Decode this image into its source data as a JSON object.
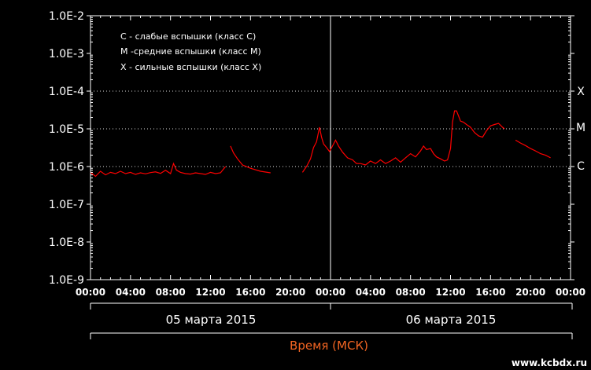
{
  "chart_data": {
    "type": "line",
    "y_scale": "log",
    "ylim": [
      "1.0E-9",
      "1.0E-2"
    ],
    "y_tick_labels": [
      "1.0E-2",
      "1.0E-3",
      "1.0E-4",
      "1.0E-5",
      "1.0E-6",
      "1.0E-7",
      "1.0E-8",
      "1.0E-9"
    ],
    "x_tick_labels": [
      "00:00",
      "04:00",
      "08:00",
      "12:00",
      "16:00",
      "20:00",
      "00:00",
      "04:00",
      "08:00",
      "12:00",
      "16:00",
      "20:00",
      "00:00"
    ],
    "xlim_hours": [
      0,
      48
    ],
    "legend": [
      "C - слабые вспышки (класс C)",
      "M -средние вспышки (класс M)",
      "X - сильные вспышки (класс X)"
    ],
    "flare_classes": [
      {
        "label": "X",
        "value": 0.0001
      },
      {
        "label": "M",
        "value": 1e-05
      },
      {
        "label": "C",
        "value": 1e-06
      }
    ],
    "dates": [
      "05 марта 2015",
      "06 марта 2015"
    ],
    "xlabel": "Время (МСК)",
    "series_color": "#ff0000",
    "series": [
      {
        "segments": [
          [
            [
              0,
              7e-07
            ],
            [
              0.5,
              5.5e-07
            ],
            [
              1.0,
              7.5e-07
            ],
            [
              1.5,
              6e-07
            ],
            [
              2.0,
              7e-07
            ],
            [
              2.5,
              6.5e-07
            ],
            [
              3.0,
              7.5e-07
            ],
            [
              3.5,
              6.5e-07
            ],
            [
              4.0,
              7e-07
            ],
            [
              4.5,
              6.2e-07
            ],
            [
              5.0,
              6.8e-07
            ],
            [
              5.5,
              6.4e-07
            ],
            [
              6.0,
              6.9e-07
            ],
            [
              6.5,
              7.2e-07
            ],
            [
              7.0,
              6.6e-07
            ],
            [
              7.5,
              8e-07
            ],
            [
              8.0,
              6.5e-07
            ],
            [
              8.3,
              1.2e-06
            ],
            [
              8.6,
              8e-07
            ],
            [
              9.0,
              7e-07
            ],
            [
              9.5,
              6.5e-07
            ],
            [
              10.0,
              6.3e-07
            ],
            [
              10.5,
              6.8e-07
            ],
            [
              11.0,
              6.5e-07
            ],
            [
              11.5,
              6.2e-07
            ],
            [
              12.0,
              7e-07
            ],
            [
              12.5,
              6.5e-07
            ],
            [
              13.0,
              6.8e-07
            ],
            [
              13.5,
              1e-06
            ]
          ],
          [
            [
              14.0,
              3.5e-06
            ],
            [
              14.3,
              2.3e-06
            ],
            [
              14.7,
              1.6e-06
            ],
            [
              15.2,
              1.1e-06
            ],
            [
              16.0,
              9e-07
            ],
            [
              17.0,
              7.5e-07
            ],
            [
              18.0,
              6.8e-07
            ]
          ],
          [
            [
              21.2,
              7e-07
            ],
            [
              21.6,
              1e-06
            ],
            [
              22.0,
              1.6e-06
            ],
            [
              22.3,
              3.2e-06
            ],
            [
              22.6,
              4.5e-06
            ],
            [
              22.9,
              1.1e-05
            ],
            [
              23.1,
              6e-06
            ],
            [
              23.3,
              4e-06
            ],
            [
              23.6,
              3.2e-06
            ],
            [
              23.9,
              2.5e-06
            ],
            [
              24.2,
              3.5e-06
            ],
            [
              24.5,
              5e-06
            ],
            [
              24.8,
              3.5e-06
            ],
            [
              25.2,
              2.4e-06
            ],
            [
              25.7,
              1.7e-06
            ],
            [
              26.2,
              1.5e-06
            ],
            [
              26.6,
              1.2e-06
            ],
            [
              27.0,
              1.2e-06
            ],
            [
              27.5,
              1.1e-06
            ],
            [
              28.0,
              1.4e-06
            ],
            [
              28.5,
              1.2e-06
            ],
            [
              29.0,
              1.5e-06
            ],
            [
              29.5,
              1.2e-06
            ],
            [
              30.0,
              1.4e-06
            ],
            [
              30.5,
              1.7e-06
            ],
            [
              31.0,
              1.3e-06
            ],
            [
              31.5,
              1.7e-06
            ],
            [
              32.0,
              2.2e-06
            ],
            [
              32.5,
              1.8e-06
            ],
            [
              33.0,
              2.6e-06
            ],
            [
              33.3,
              3.5e-06
            ],
            [
              33.6,
              2.8e-06
            ],
            [
              34.0,
              3e-06
            ],
            [
              34.3,
              2.2e-06
            ],
            [
              34.6,
              1.8e-06
            ],
            [
              35.0,
              1.6e-06
            ],
            [
              35.4,
              1.4e-06
            ],
            [
              35.7,
              1.5e-06
            ],
            [
              36.0,
              3e-06
            ],
            [
              36.2,
              1.5e-05
            ],
            [
              36.4,
              3e-05
            ],
            [
              36.6,
              3e-05
            ],
            [
              36.8,
              2.2e-05
            ],
            [
              37.0,
              1.6e-05
            ],
            [
              37.3,
              1.5e-05
            ],
            [
              37.6,
              1.3e-05
            ],
            [
              38.0,
              1.1e-05
            ],
            [
              38.4,
              8e-06
            ],
            [
              38.8,
              6.5e-06
            ],
            [
              39.2,
              6e-06
            ],
            [
              39.6,
              9e-06
            ],
            [
              40.0,
              1.2e-05
            ],
            [
              40.4,
              1.3e-05
            ],
            [
              40.8,
              1.4e-05
            ],
            [
              41.2,
              1.1e-05
            ],
            [
              41.4,
              1e-05
            ]
          ],
          [
            [
              42.5,
              5e-06
            ],
            [
              43.0,
              4.2e-06
            ],
            [
              43.5,
              3.6e-06
            ],
            [
              44.0,
              3e-06
            ],
            [
              44.5,
              2.6e-06
            ],
            [
              45.0,
              2.2e-06
            ],
            [
              45.5,
              2e-06
            ],
            [
              46.0,
              1.7e-06
            ]
          ]
        ]
      }
    ]
  },
  "watermark": "www.kcbdx.ru"
}
